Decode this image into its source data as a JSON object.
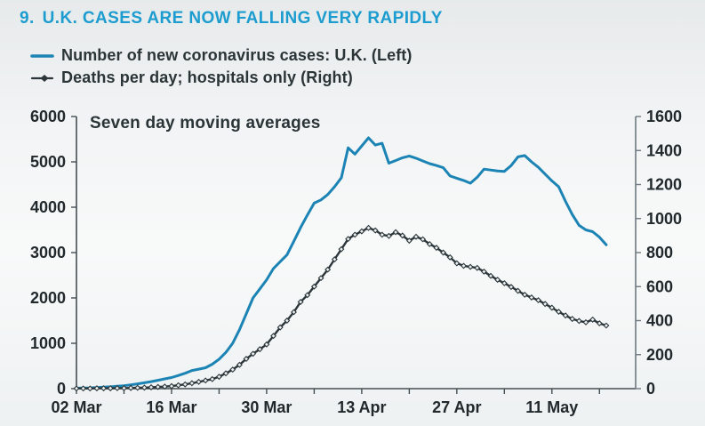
{
  "title": {
    "number": "9.",
    "text": "U.K. CASES ARE NOW FALLING VERY RAPIDLY",
    "color": "#1d9ccf"
  },
  "legend": {
    "items": [
      {
        "label": "Number of new coronavirus cases: U.K. (Left)",
        "marker": "line",
        "color": "#1c84b4"
      },
      {
        "label": "Deaths per day; hospitals only (Right)",
        "marker": "line-diamond",
        "color": "#2c363a"
      }
    ]
  },
  "chart_data": {
    "type": "line",
    "annotation": "Seven day moving averages",
    "x_unit": "date",
    "grid": false,
    "legend_position": "top-left",
    "x": [
      "02 Mar",
      "03 Mar",
      "04 Mar",
      "05 Mar",
      "06 Mar",
      "07 Mar",
      "08 Mar",
      "09 Mar",
      "10 Mar",
      "11 Mar",
      "12 Mar",
      "13 Mar",
      "14 Mar",
      "15 Mar",
      "16 Mar",
      "17 Mar",
      "18 Mar",
      "19 Mar",
      "20 Mar",
      "21 Mar",
      "22 Mar",
      "23 Mar",
      "24 Mar",
      "25 Mar",
      "26 Mar",
      "27 Mar",
      "28 Mar",
      "29 Mar",
      "30 Mar",
      "31 Mar",
      "01 Apr",
      "02 Apr",
      "03 Apr",
      "04 Apr",
      "05 Apr",
      "06 Apr",
      "07 Apr",
      "08 Apr",
      "09 Apr",
      "10 Apr",
      "11 Apr",
      "12 Apr",
      "13 Apr",
      "14 Apr",
      "15 Apr",
      "16 Apr",
      "17 Apr",
      "18 Apr",
      "19 Apr",
      "20 Apr",
      "21 Apr",
      "22 Apr",
      "23 Apr",
      "24 Apr",
      "25 Apr",
      "26 Apr",
      "27 Apr",
      "28 Apr",
      "29 Apr",
      "30 Apr",
      "01 May",
      "02 May",
      "03 May",
      "04 May",
      "05 May",
      "06 May",
      "07 May",
      "08 May",
      "09 May",
      "10 May",
      "11 May",
      "12 May",
      "13 May",
      "14 May",
      "15 May",
      "16 May",
      "17 May",
      "18 May",
      "19 May"
    ],
    "series": [
      {
        "name": "Number of new coronavirus cases: U.K.",
        "axis": "left",
        "color": "#1c84b4",
        "marker": "none",
        "values": [
          10,
          14,
          18,
          25,
          33,
          42,
          52,
          65,
          85,
          105,
          130,
          155,
          185,
          215,
          245,
          290,
          340,
          400,
          430,
          460,
          540,
          650,
          800,
          1000,
          1300,
          1650,
          2000,
          2200,
          2400,
          2650,
          2800,
          2950,
          3250,
          3550,
          3830,
          4090,
          4160,
          4280,
          4450,
          4650,
          5310,
          5170,
          5350,
          5530,
          5370,
          5410,
          4970,
          5030,
          5090,
          5130,
          5080,
          5020,
          4960,
          4920,
          4870,
          4690,
          4640,
          4590,
          4530,
          4660,
          4840,
          4820,
          4800,
          4790,
          4920,
          5110,
          5140,
          5000,
          4880,
          4730,
          4580,
          4450,
          4130,
          3840,
          3600,
          3500,
          3460,
          3340,
          3170
        ]
      },
      {
        "name": "Deaths per day; hospitals only",
        "axis": "right",
        "color": "#2c363a",
        "marker": "diamond",
        "values": [
          1,
          1,
          1,
          2,
          2,
          2,
          3,
          3,
          4,
          5,
          6,
          8,
          10,
          12,
          15,
          20,
          25,
          32,
          40,
          48,
          56,
          70,
          90,
          112,
          140,
          175,
          205,
          232,
          260,
          310,
          360,
          400,
          450,
          510,
          550,
          600,
          650,
          700,
          760,
          820,
          880,
          905,
          925,
          945,
          930,
          905,
          898,
          920,
          900,
          870,
          893,
          878,
          850,
          828,
          800,
          772,
          737,
          722,
          716,
          710,
          688,
          663,
          640,
          620,
          598,
          575,
          552,
          536,
          520,
          498,
          476,
          452,
          430,
          410,
          398,
          390,
          406,
          384,
          371
        ]
      }
    ],
    "y_left": {
      "min": 0,
      "max": 6000,
      "tick_step": 1000
    },
    "y_right": {
      "min": 0,
      "max": 1600,
      "tick_step": 200
    },
    "x_minor_tick_days": [
      0,
      7,
      14,
      21,
      28,
      35,
      42,
      49,
      56,
      63,
      70,
      77
    ],
    "x_labeled_ticks": [
      {
        "day": 0,
        "label": "02 Mar"
      },
      {
        "day": 14,
        "label": "16 Mar"
      },
      {
        "day": 28,
        "label": "30 Mar"
      },
      {
        "day": 42,
        "label": "13 Apr"
      },
      {
        "day": 56,
        "label": "27 Apr"
      },
      {
        "day": 70,
        "label": "11 May"
      }
    ]
  }
}
